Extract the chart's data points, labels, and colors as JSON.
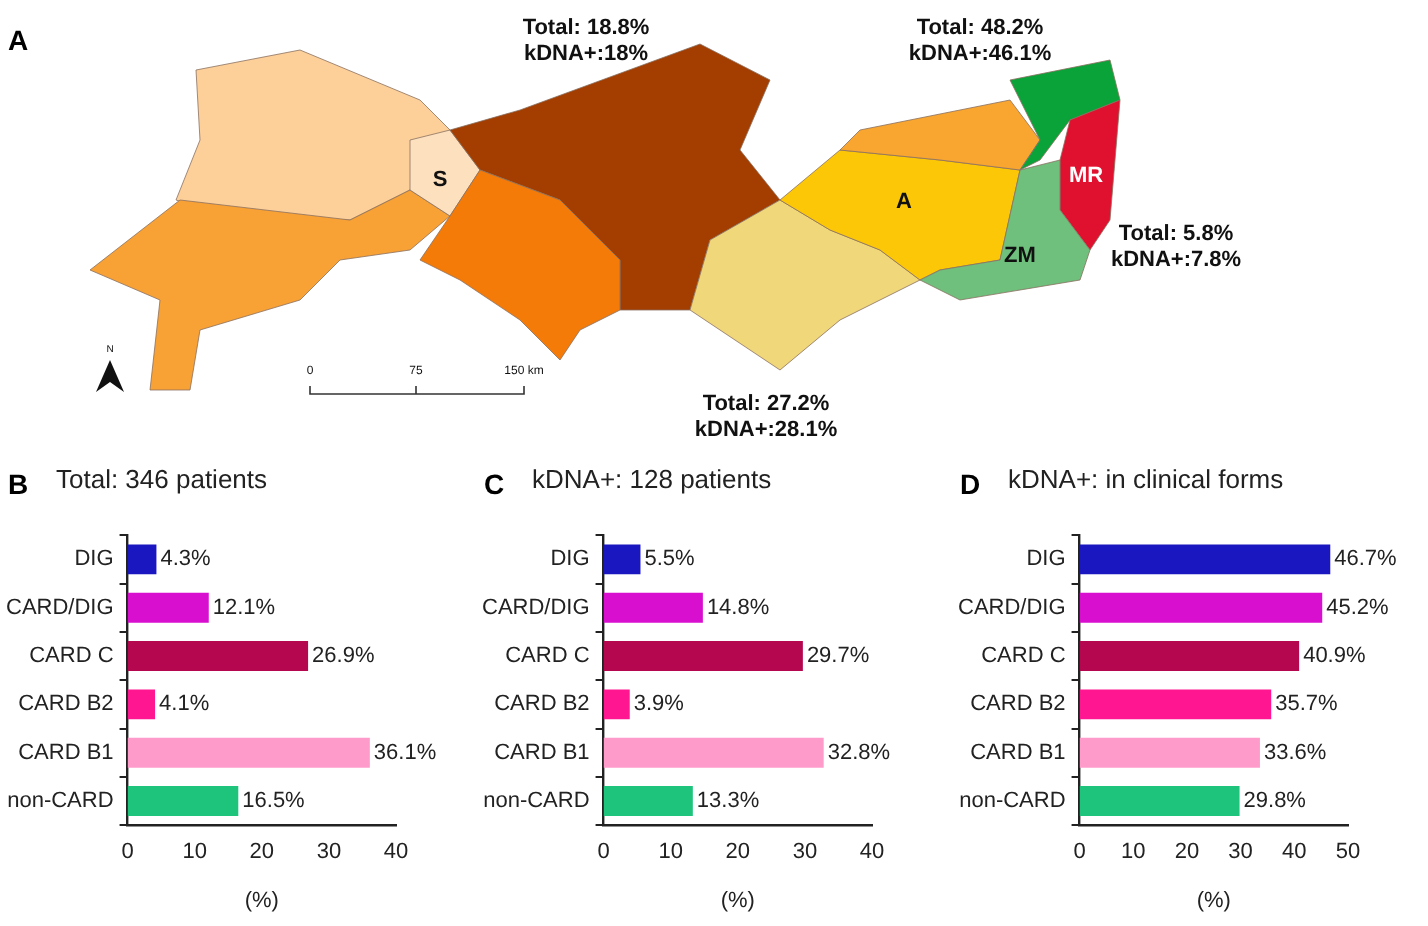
{
  "chart_data": [
    {
      "type": "other",
      "annotations": [
        "A",
        "Total: 18.8%",
        "kDNA+:18%",
        "Total: 48.2%",
        "kDNA+:46.1%",
        "Total: 5.8%",
        "kDNA+:7.8%",
        "Total: 27.2%",
        "kDNA+:28.1%",
        "S",
        "A",
        "ZM",
        "MR",
        "0",
        "75",
        "150 km",
        "N"
      ]
    },
    {
      "type": "bar",
      "orientation": "horizontal",
      "title": "Total: 346 patients",
      "annotations": [
        "B"
      ],
      "xlabel": "(%)",
      "categories": [
        "DIG",
        "CARD/DIG",
        "CARD C",
        "CARD B2",
        "CARD B1",
        "non-CARD"
      ],
      "values": [
        4.3,
        12.1,
        26.9,
        4.1,
        36.1,
        16.5
      ],
      "value_labels": [
        "4.3%",
        "12.1%",
        "26.9%",
        "4.1%",
        "36.1%",
        "16.5%"
      ],
      "colors": [
        "#1a17c0",
        "#d90fd0",
        "#b5074f",
        "#ff1690",
        "#ff9bcb",
        "#1ec47b"
      ],
      "xlim": [
        0,
        40
      ],
      "xticks": [
        0,
        10,
        20,
        30,
        40
      ],
      "grid": false
    },
    {
      "type": "bar",
      "orientation": "horizontal",
      "title": "kDNA+: 128 patients",
      "annotations": [
        "C"
      ],
      "xlabel": "(%)",
      "categories": [
        "DIG",
        "CARD/DIG",
        "CARD C",
        "CARD B2",
        "CARD B1",
        "non-CARD"
      ],
      "values": [
        5.5,
        14.8,
        29.7,
        3.9,
        32.8,
        13.3
      ],
      "value_labels": [
        "5.5%",
        "14.8%",
        "29.7%",
        "3.9%",
        "32.8%",
        "13.3%"
      ],
      "colors": [
        "#1a17c0",
        "#d90fd0",
        "#b5074f",
        "#ff1690",
        "#ff9bcb",
        "#1ec47b"
      ],
      "xlim": [
        0,
        40
      ],
      "xticks": [
        0,
        10,
        20,
        30,
        40
      ],
      "grid": false
    },
    {
      "type": "bar",
      "orientation": "horizontal",
      "title": "kDNA+: in clinical forms",
      "annotations": [
        "D"
      ],
      "xlabel": "(%)",
      "categories": [
        "DIG",
        "CARD/DIG",
        "CARD C",
        "CARD B2",
        "CARD B1",
        "non-CARD"
      ],
      "values": [
        46.7,
        45.2,
        40.9,
        35.7,
        33.6,
        29.8
      ],
      "value_labels": [
        "46.7%",
        "45.2%",
        "40.9%",
        "35.7%",
        "33.6%",
        "29.8%"
      ],
      "colors": [
        "#1a17c0",
        "#d90fd0",
        "#b5074f",
        "#ff1690",
        "#ff9bcb",
        "#1ec47b"
      ],
      "xlim": [
        0,
        50
      ],
      "xticks": [
        0,
        10,
        20,
        30,
        40,
        50
      ],
      "grid": false
    }
  ]
}
